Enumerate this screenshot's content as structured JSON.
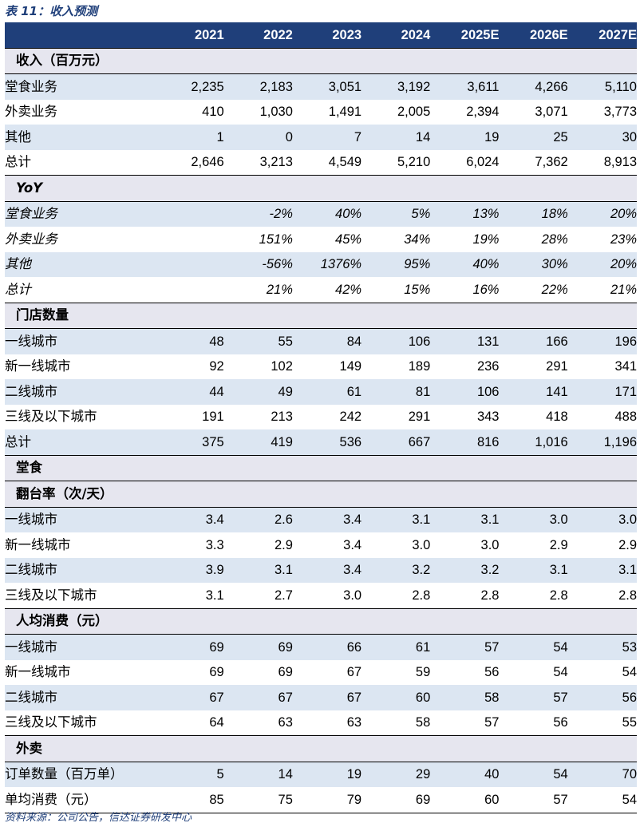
{
  "caption": "表 11：收入预测",
  "years": [
    "2021",
    "2022",
    "2023",
    "2024",
    "2025E",
    "2026E",
    "2027E"
  ],
  "sections": [
    {
      "title": "收入（百万元）",
      "italic": false,
      "rows": [
        {
          "label": "堂食业务",
          "values": [
            "2,235",
            "2,183",
            "3,051",
            "3,192",
            "3,611",
            "4,266",
            "5,110"
          ]
        },
        {
          "label": "外卖业务",
          "values": [
            "410",
            "1,030",
            "1,491",
            "2,005",
            "2,394",
            "3,071",
            "3,773"
          ]
        },
        {
          "label": "其他",
          "values": [
            "1",
            "0",
            "7",
            "14",
            "19",
            "25",
            "30"
          ]
        },
        {
          "label": "总计",
          "values": [
            "2,646",
            "3,213",
            "4,549",
            "5,210",
            "6,024",
            "7,362",
            "8,913"
          ]
        }
      ]
    },
    {
      "title": "YoY",
      "italic": true,
      "rows": [
        {
          "label": "堂食业务",
          "values": [
            "",
            "-2%",
            "40%",
            "5%",
            "13%",
            "18%",
            "20%"
          ]
        },
        {
          "label": "外卖业务",
          "values": [
            "",
            "151%",
            "45%",
            "34%",
            "19%",
            "28%",
            "23%"
          ]
        },
        {
          "label": "其他",
          "values": [
            "",
            "-56%",
            "1376%",
            "95%",
            "40%",
            "30%",
            "20%"
          ]
        },
        {
          "label": "总计",
          "values": [
            "",
            "21%",
            "42%",
            "15%",
            "16%",
            "22%",
            "21%"
          ]
        }
      ]
    },
    {
      "title": "门店数量",
      "italic": false,
      "rows": [
        {
          "label": "一线城市",
          "values": [
            "48",
            "55",
            "84",
            "106",
            "131",
            "166",
            "196"
          ]
        },
        {
          "label": "新一线城市",
          "values": [
            "92",
            "102",
            "149",
            "189",
            "236",
            "291",
            "341"
          ]
        },
        {
          "label": "二线城市",
          "values": [
            "44",
            "49",
            "61",
            "81",
            "106",
            "141",
            "171"
          ]
        },
        {
          "label": "三线及以下城市",
          "values": [
            "191",
            "213",
            "242",
            "291",
            "343",
            "418",
            "488"
          ]
        },
        {
          "label": "总计",
          "values": [
            "375",
            "419",
            "536",
            "667",
            "816",
            "1,016",
            "1,196"
          ]
        }
      ]
    },
    {
      "title": "堂食",
      "italic": false,
      "rows": []
    },
    {
      "title": "翻台率（次/天）",
      "italic": false,
      "rows": [
        {
          "label": "一线城市",
          "values": [
            "3.4",
            "2.6",
            "3.4",
            "3.1",
            "3.1",
            "3.0",
            "3.0"
          ]
        },
        {
          "label": "新一线城市",
          "values": [
            "3.3",
            "2.9",
            "3.4",
            "3.0",
            "3.0",
            "2.9",
            "2.9"
          ]
        },
        {
          "label": "二线城市",
          "values": [
            "3.9",
            "3.1",
            "3.4",
            "3.2",
            "3.2",
            "3.1",
            "3.1"
          ]
        },
        {
          "label": "三线及以下城市",
          "values": [
            "3.1",
            "2.7",
            "3.0",
            "2.8",
            "2.8",
            "2.8",
            "2.8"
          ]
        }
      ]
    },
    {
      "title": "人均消费（元）",
      "italic": false,
      "rows": [
        {
          "label": "一线城市",
          "values": [
            "69",
            "69",
            "66",
            "61",
            "57",
            "54",
            "53"
          ]
        },
        {
          "label": "新一线城市",
          "values": [
            "69",
            "69",
            "67",
            "59",
            "56",
            "54",
            "54"
          ]
        },
        {
          "label": "二线城市",
          "values": [
            "67",
            "67",
            "67",
            "60",
            "58",
            "57",
            "56"
          ]
        },
        {
          "label": "三线及以下城市",
          "values": [
            "64",
            "63",
            "63",
            "58",
            "57",
            "56",
            "55"
          ]
        }
      ]
    },
    {
      "title": "外卖",
      "italic": false,
      "rows": [
        {
          "label": "订单数量（百万单）",
          "values": [
            "5",
            "14",
            "19",
            "29",
            "40",
            "54",
            "70"
          ]
        },
        {
          "label": "单均消费（元）",
          "values": [
            "85",
            "75",
            "79",
            "69",
            "60",
            "57",
            "54"
          ]
        }
      ]
    }
  ],
  "source": "资料来源：公司公告，信达证券研发中心",
  "colors": {
    "header_bg": "#1f3f7a",
    "section_bg": "#e6e6ef",
    "stripe_bg": "#dce6f2",
    "caption": "#1f3f7a"
  }
}
